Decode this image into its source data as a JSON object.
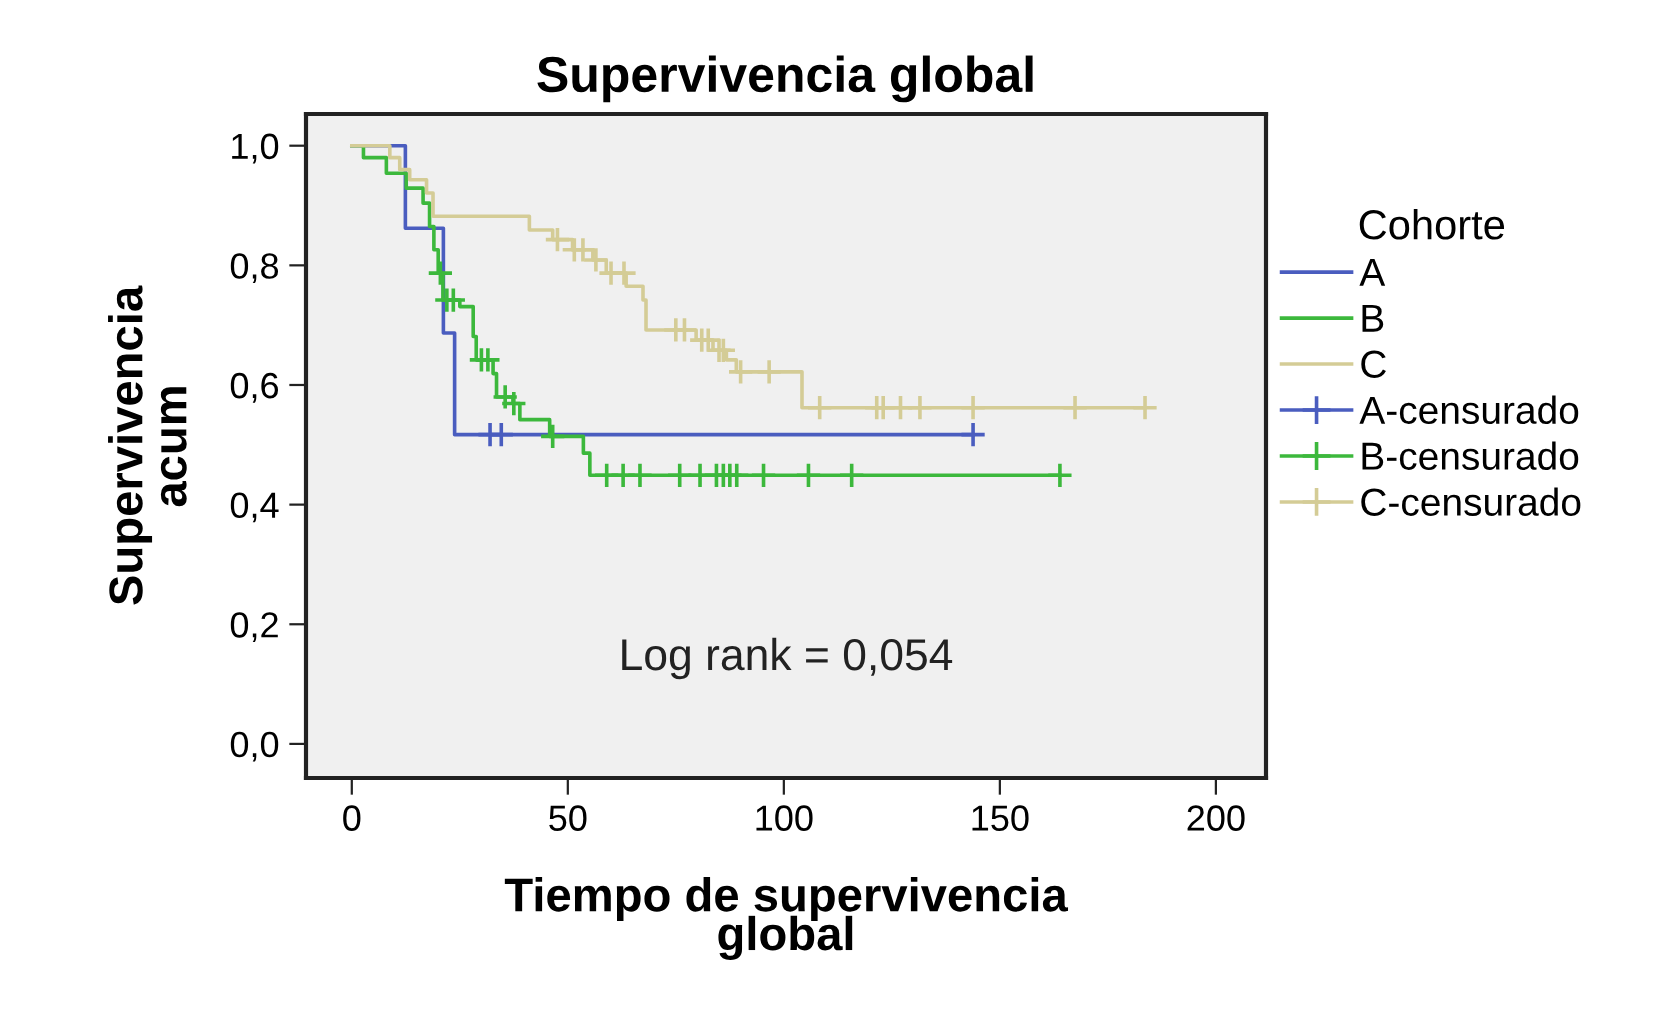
{
  "chart_data": {
    "type": "step",
    "title": "Supervivencia global",
    "xlabel": "Tiempo de supervivencia\nglobal",
    "ylabel": "Supervivencia\nacum",
    "legend_title": "Cohorte",
    "legend": "right",
    "grid": false,
    "annotations": [
      "Log rank = 0,054"
    ],
    "xlim": [
      -10.6,
      211.6
    ],
    "xticks": [
      0,
      50,
      100,
      150,
      200
    ],
    "ylim": [
      -0.057,
      1.053
    ],
    "yticks": [
      {
        "value": 0,
        "label": "0,0"
      },
      {
        "value": 0.2,
        "label": "0,2"
      },
      {
        "value": 0.4,
        "label": "0,4"
      },
      {
        "value": 0.6,
        "label": "0,6"
      },
      {
        "value": 0.8,
        "label": "0,8"
      },
      {
        "value": 1.0,
        "label": "1,0"
      }
    ],
    "series": [
      {
        "name": "A",
        "color": "#4a5dbf",
        "x": [
          0,
          12.4,
          21.2,
          23.8,
          143.8
        ],
        "values": [
          1.0,
          0.862,
          0.687,
          0.517,
          0.517
        ]
      },
      {
        "name": "B",
        "color": "#3cb83c",
        "x": [
          0,
          2.7,
          8.0,
          12.6,
          16.5,
          18.0,
          19.0,
          20.0,
          21.1,
          25.0,
          28.1,
          28.8,
          32.7,
          33.5,
          37.3,
          38.9,
          45.8,
          53.6,
          55.1,
          163.9
        ],
        "values": [
          1.0,
          0.98,
          0.954,
          0.929,
          0.904,
          0.865,
          0.826,
          0.787,
          0.742,
          0.731,
          0.681,
          0.642,
          0.619,
          0.58,
          0.569,
          0.542,
          0.514,
          0.486,
          0.449,
          0.449
        ]
      },
      {
        "name": "C",
        "color": "#d4cc96",
        "x": [
          0,
          8.8,
          11.1,
          13.4,
          17.3,
          18.8,
          41.1,
          46.5,
          51.1,
          55.8,
          58.9,
          63.5,
          67.4,
          68.1,
          79.7,
          83.6,
          86.7,
          89.0,
          104.2,
          183.6
        ],
        "values": [
          1.0,
          0.98,
          0.96,
          0.943,
          0.921,
          0.882,
          0.859,
          0.843,
          0.826,
          0.809,
          0.787,
          0.765,
          0.742,
          0.692,
          0.675,
          0.658,
          0.642,
          0.622,
          0.562,
          0.562
        ]
      },
      {
        "name": "A-censurado",
        "type": "scatter",
        "marker": "cross",
        "color": "#4a5dbf",
        "x": [
          32.0,
          34.6,
          143.8
        ],
        "values": [
          0.517,
          0.517,
          0.517
        ]
      },
      {
        "name": "B-censurado",
        "type": "scatter",
        "marker": "cross",
        "color": "#3cb83c",
        "x": [
          20.5,
          22.0,
          23.5,
          30.0,
          31.5,
          35.5,
          37.5,
          46.5,
          59.0,
          62.8,
          66.7,
          75.9,
          80.6,
          84.4,
          86.0,
          87.5,
          89.1,
          95.3,
          105.7,
          115.7,
          163.9
        ],
        "values": [
          0.787,
          0.742,
          0.742,
          0.642,
          0.642,
          0.58,
          0.569,
          0.514,
          0.449,
          0.449,
          0.449,
          0.449,
          0.449,
          0.449,
          0.449,
          0.449,
          0.449,
          0.449,
          0.449,
          0.449,
          0.449
        ]
      },
      {
        "name": "C-censurado",
        "type": "scatter",
        "marker": "cross",
        "color": "#d4cc96",
        "x": [
          47.6,
          51.5,
          53.5,
          56.5,
          60.0,
          63.0,
          75.0,
          77.0,
          81.0,
          82.5,
          85.0,
          86.0,
          90.0,
          96.6,
          108.3,
          121.5,
          123.0,
          127.0,
          131.5,
          143.8,
          167.4,
          183.6
        ],
        "values": [
          0.843,
          0.826,
          0.826,
          0.809,
          0.787,
          0.787,
          0.692,
          0.692,
          0.675,
          0.675,
          0.658,
          0.658,
          0.622,
          0.622,
          0.562,
          0.562,
          0.562,
          0.562,
          0.562,
          0.562,
          0.562,
          0.562
        ]
      }
    ]
  }
}
